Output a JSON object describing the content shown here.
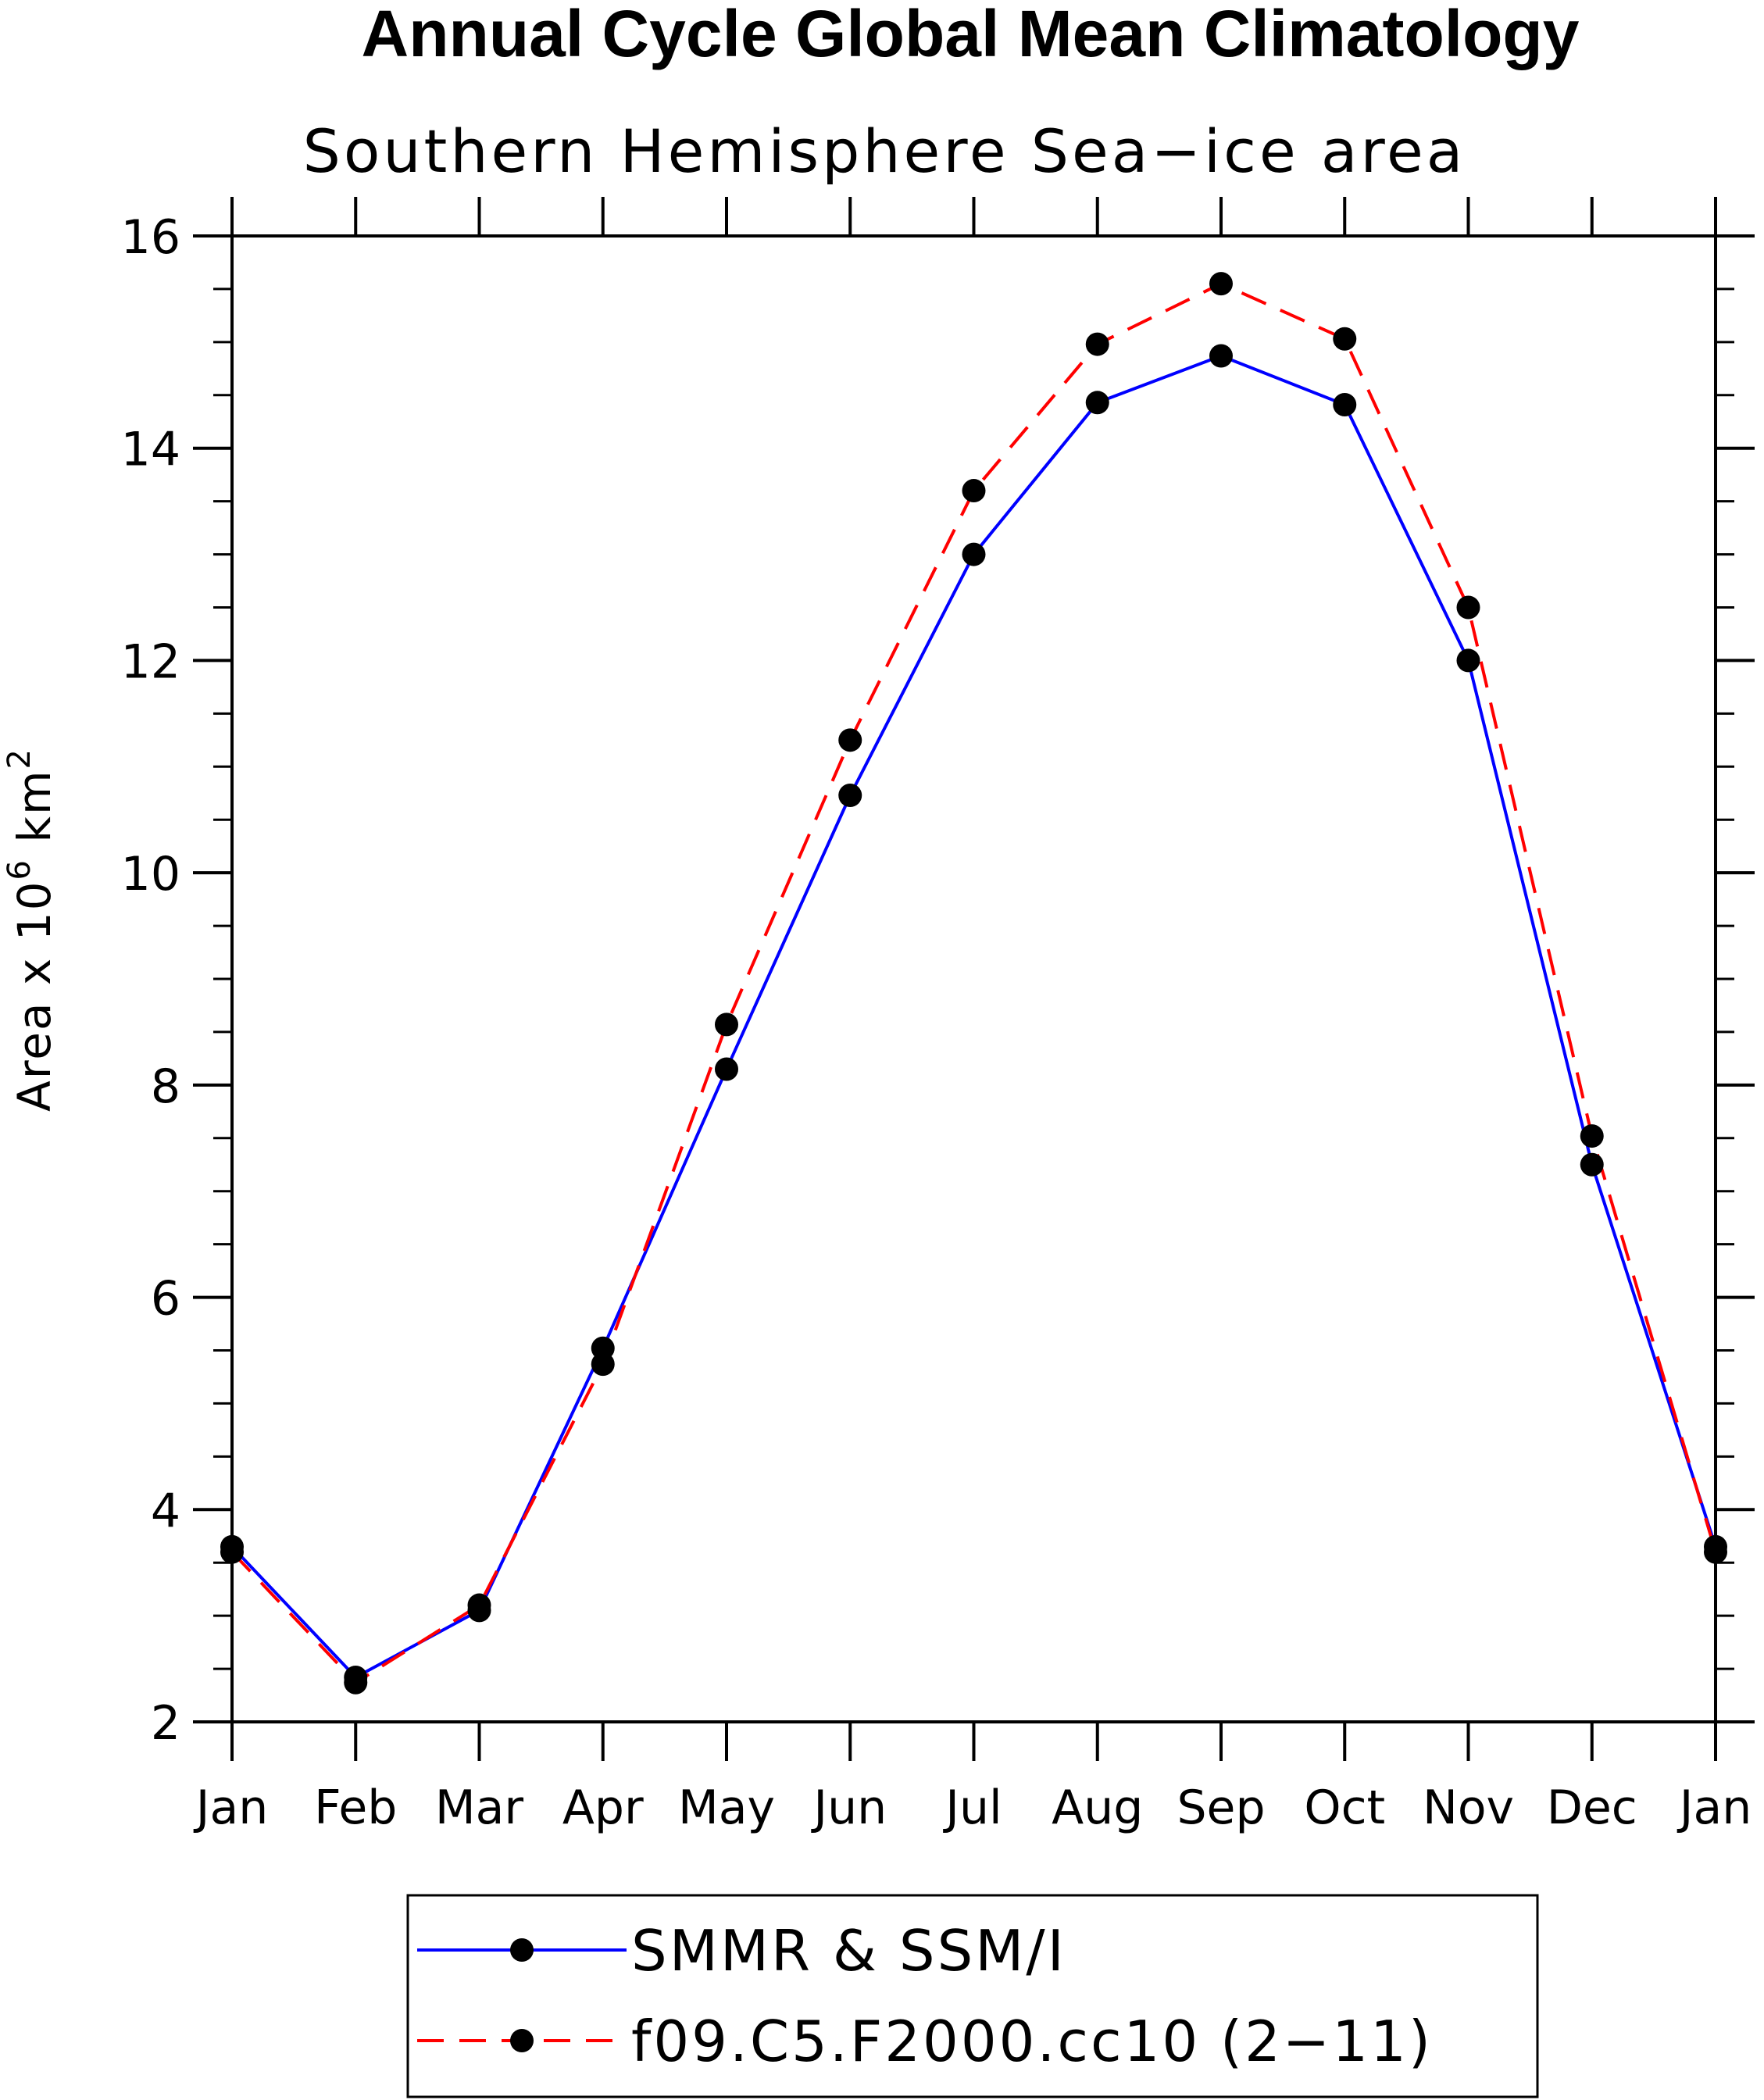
{
  "chart_data": {
    "type": "line",
    "title": "Annual Cycle Global Mean Climatology",
    "subtitle": "Southern Hemisphere Sea−ice area",
    "ylabel": "Area x 10",
    "ylabel_sup": "6",
    "ylabel_unit": " km",
    "ylabel_unit_sup": "2",
    "categories": [
      "Jan",
      "Feb",
      "Mar",
      "Apr",
      "May",
      "Jun",
      "Jul",
      "Aug",
      "Sep",
      "Oct",
      "Nov",
      "Dec",
      "Jan"
    ],
    "ylim": [
      2,
      16
    ],
    "yticks": [
      2,
      4,
      6,
      8,
      10,
      12,
      14,
      16
    ],
    "y_minor_step": 0.5,
    "grid": false,
    "legend_position": "bottom",
    "series": [
      {
        "name": "SMMR & SSM/I",
        "color": "#0000ff",
        "dash": "solid",
        "values": [
          3.65,
          2.42,
          3.05,
          5.52,
          8.15,
          10.73,
          13.0,
          14.43,
          14.87,
          14.41,
          12.0,
          7.25,
          3.65
        ]
      },
      {
        "name": "f09.C5.F2000.cc10 (2−11)",
        "color": "#ff0000",
        "dash": "dashed",
        "values": [
          3.6,
          2.37,
          3.1,
          5.37,
          8.57,
          11.25,
          13.6,
          14.98,
          15.55,
          15.03,
          12.5,
          7.52,
          3.6
        ]
      }
    ]
  }
}
